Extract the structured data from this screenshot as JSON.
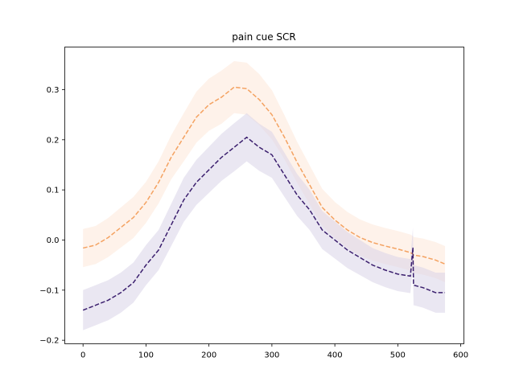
{
  "chart_data": {
    "type": "line",
    "title": "pain cue SCR",
    "xlabel": "",
    "ylabel": "",
    "xlim": [
      -29,
      605
    ],
    "ylim": [
      -0.207,
      0.385
    ],
    "xticks": [
      0,
      100,
      200,
      300,
      400,
      500,
      600
    ],
    "xtick_labels": [
      "0",
      "100",
      "200",
      "300",
      "400",
      "500",
      "600"
    ],
    "yticks": [
      -0.2,
      -0.1,
      0.0,
      0.1,
      0.2,
      0.3
    ],
    "ytick_labels": [
      "−0.2",
      "−0.1",
      "0.0",
      "0.1",
      "0.2",
      "0.3"
    ],
    "grid": false,
    "legend": "none",
    "series": [
      {
        "color": "#f4a261",
        "band_color": "#fde3d0",
        "line_style": "dashed",
        "x": [
          0,
          20,
          40,
          60,
          80,
          100,
          120,
          140,
          160,
          180,
          200,
          220,
          240,
          260,
          280,
          300,
          320,
          340,
          360,
          380,
          400,
          420,
          440,
          460,
          480,
          500,
          520,
          524,
          525,
          540,
          560,
          575
        ],
        "y": [
          -0.016,
          -0.01,
          0.005,
          0.025,
          0.045,
          0.075,
          0.115,
          0.165,
          0.205,
          0.245,
          0.27,
          0.285,
          0.305,
          0.302,
          0.28,
          0.25,
          0.205,
          0.155,
          0.11,
          0.065,
          0.04,
          0.02,
          0.005,
          -0.005,
          -0.012,
          -0.018,
          -0.025,
          -0.028,
          -0.03,
          -0.033,
          -0.04,
          -0.048
        ],
        "lower": [
          -0.054,
          -0.048,
          -0.034,
          -0.015,
          0.004,
          0.034,
          0.073,
          0.121,
          0.157,
          0.194,
          0.218,
          0.232,
          0.253,
          0.25,
          0.229,
          0.201,
          0.161,
          0.114,
          0.071,
          0.028,
          0.004,
          -0.016,
          -0.031,
          -0.041,
          -0.048,
          -0.054,
          -0.061,
          -0.064,
          -0.066,
          -0.069,
          -0.076,
          -0.084
        ],
        "upper": [
          0.022,
          0.028,
          0.044,
          0.065,
          0.086,
          0.116,
          0.157,
          0.209,
          0.253,
          0.296,
          0.322,
          0.338,
          0.357,
          0.354,
          0.331,
          0.299,
          0.249,
          0.196,
          0.149,
          0.102,
          0.076,
          0.056,
          0.041,
          0.031,
          0.024,
          0.018,
          0.011,
          0.008,
          0.006,
          0.003,
          -0.004,
          -0.012
        ]
      },
      {
        "color": "#3b1f6e",
        "band_color": "#d9d3e8",
        "line_style": "dashed",
        "x": [
          0,
          20,
          40,
          60,
          80,
          100,
          120,
          140,
          160,
          180,
          200,
          220,
          240,
          260,
          280,
          300,
          320,
          340,
          360,
          380,
          400,
          420,
          440,
          460,
          480,
          500,
          520,
          524,
          525,
          540,
          560,
          575
        ],
        "y": [
          -0.14,
          -0.13,
          -0.12,
          -0.105,
          -0.085,
          -0.05,
          -0.02,
          0.03,
          0.08,
          0.115,
          0.14,
          0.165,
          0.185,
          0.205,
          0.185,
          0.17,
          0.13,
          0.09,
          0.06,
          0.02,
          0.0,
          -0.02,
          -0.035,
          -0.05,
          -0.06,
          -0.068,
          -0.072,
          -0.015,
          -0.09,
          -0.095,
          -0.105,
          -0.105
        ],
        "lower": [
          -0.18,
          -0.17,
          -0.16,
          -0.145,
          -0.125,
          -0.09,
          -0.06,
          -0.012,
          0.036,
          0.07,
          0.094,
          0.118,
          0.137,
          0.157,
          0.138,
          0.124,
          0.086,
          0.048,
          0.02,
          -0.018,
          -0.037,
          -0.056,
          -0.07,
          -0.084,
          -0.094,
          -0.102,
          -0.106,
          -0.055,
          -0.13,
          -0.135,
          -0.145,
          -0.145
        ],
        "upper": [
          -0.1,
          -0.09,
          -0.08,
          -0.065,
          -0.045,
          -0.01,
          0.02,
          0.072,
          0.124,
          0.16,
          0.186,
          0.212,
          0.233,
          0.253,
          0.232,
          0.216,
          0.174,
          0.132,
          0.1,
          0.058,
          0.037,
          0.016,
          0.0,
          -0.016,
          -0.026,
          -0.034,
          -0.038,
          0.025,
          -0.05,
          -0.055,
          -0.065,
          -0.065
        ]
      }
    ]
  }
}
